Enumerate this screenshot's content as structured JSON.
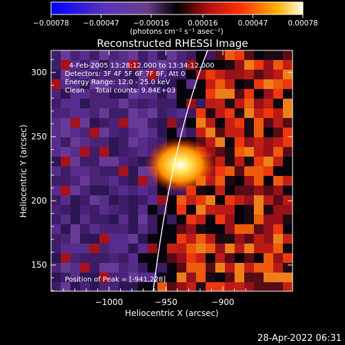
{
  "chart_data": {
    "type": "heatmap",
    "title": "Reconstructed RHESSI Image",
    "xlabel": "Heliocentric X (arcsec)",
    "ylabel": "Heliocentric Y (arcsec)",
    "xlim": [
      -1045,
      -985
    ],
    "ylim": [
      125,
      320
    ],
    "x_ticks": [
      -1000,
      -950,
      -900
    ],
    "x_tick_labels": [
      "−1000",
      "−950",
      "−900"
    ],
    "y_ticks": [
      150,
      200,
      250,
      300
    ],
    "y_tick_labels": [
      "150",
      "200",
      "250",
      "300"
    ],
    "colorbar": {
      "range": [
        -0.00078,
        0.00078
      ],
      "ticks": [
        -0.00078,
        -0.00047,
        -0.00016,
        0.00016,
        0.00047,
        0.00078
      ],
      "tick_labels": [
        "−0.00078",
        "−0.00047",
        "−0.00016",
        "0.00016",
        "0.00047",
        "0.00078"
      ],
      "unit_label": "(photons cm⁻² s⁻¹ asec⁻²)"
    },
    "peak": {
      "x": -941,
      "y": 228
    },
    "grid": false
  },
  "annotations": {
    "time_range": "4-Feb-2005 13:28:12.000 to 13:34:12.000",
    "detectors": "Detectors: 3F 4F 5F 6F 7F 8F, Att 0",
    "energy": "Energy Range: 12.0 - 25.0 keV",
    "clean": "Clean     Total counts: 9.84E+03",
    "peak_position": "Position of Peak = [-941,228]"
  },
  "footer": {
    "timestamp": "28-Apr-2022 06:31"
  },
  "colors": {
    "background": "#000000",
    "limb_line": "#ffffff"
  }
}
